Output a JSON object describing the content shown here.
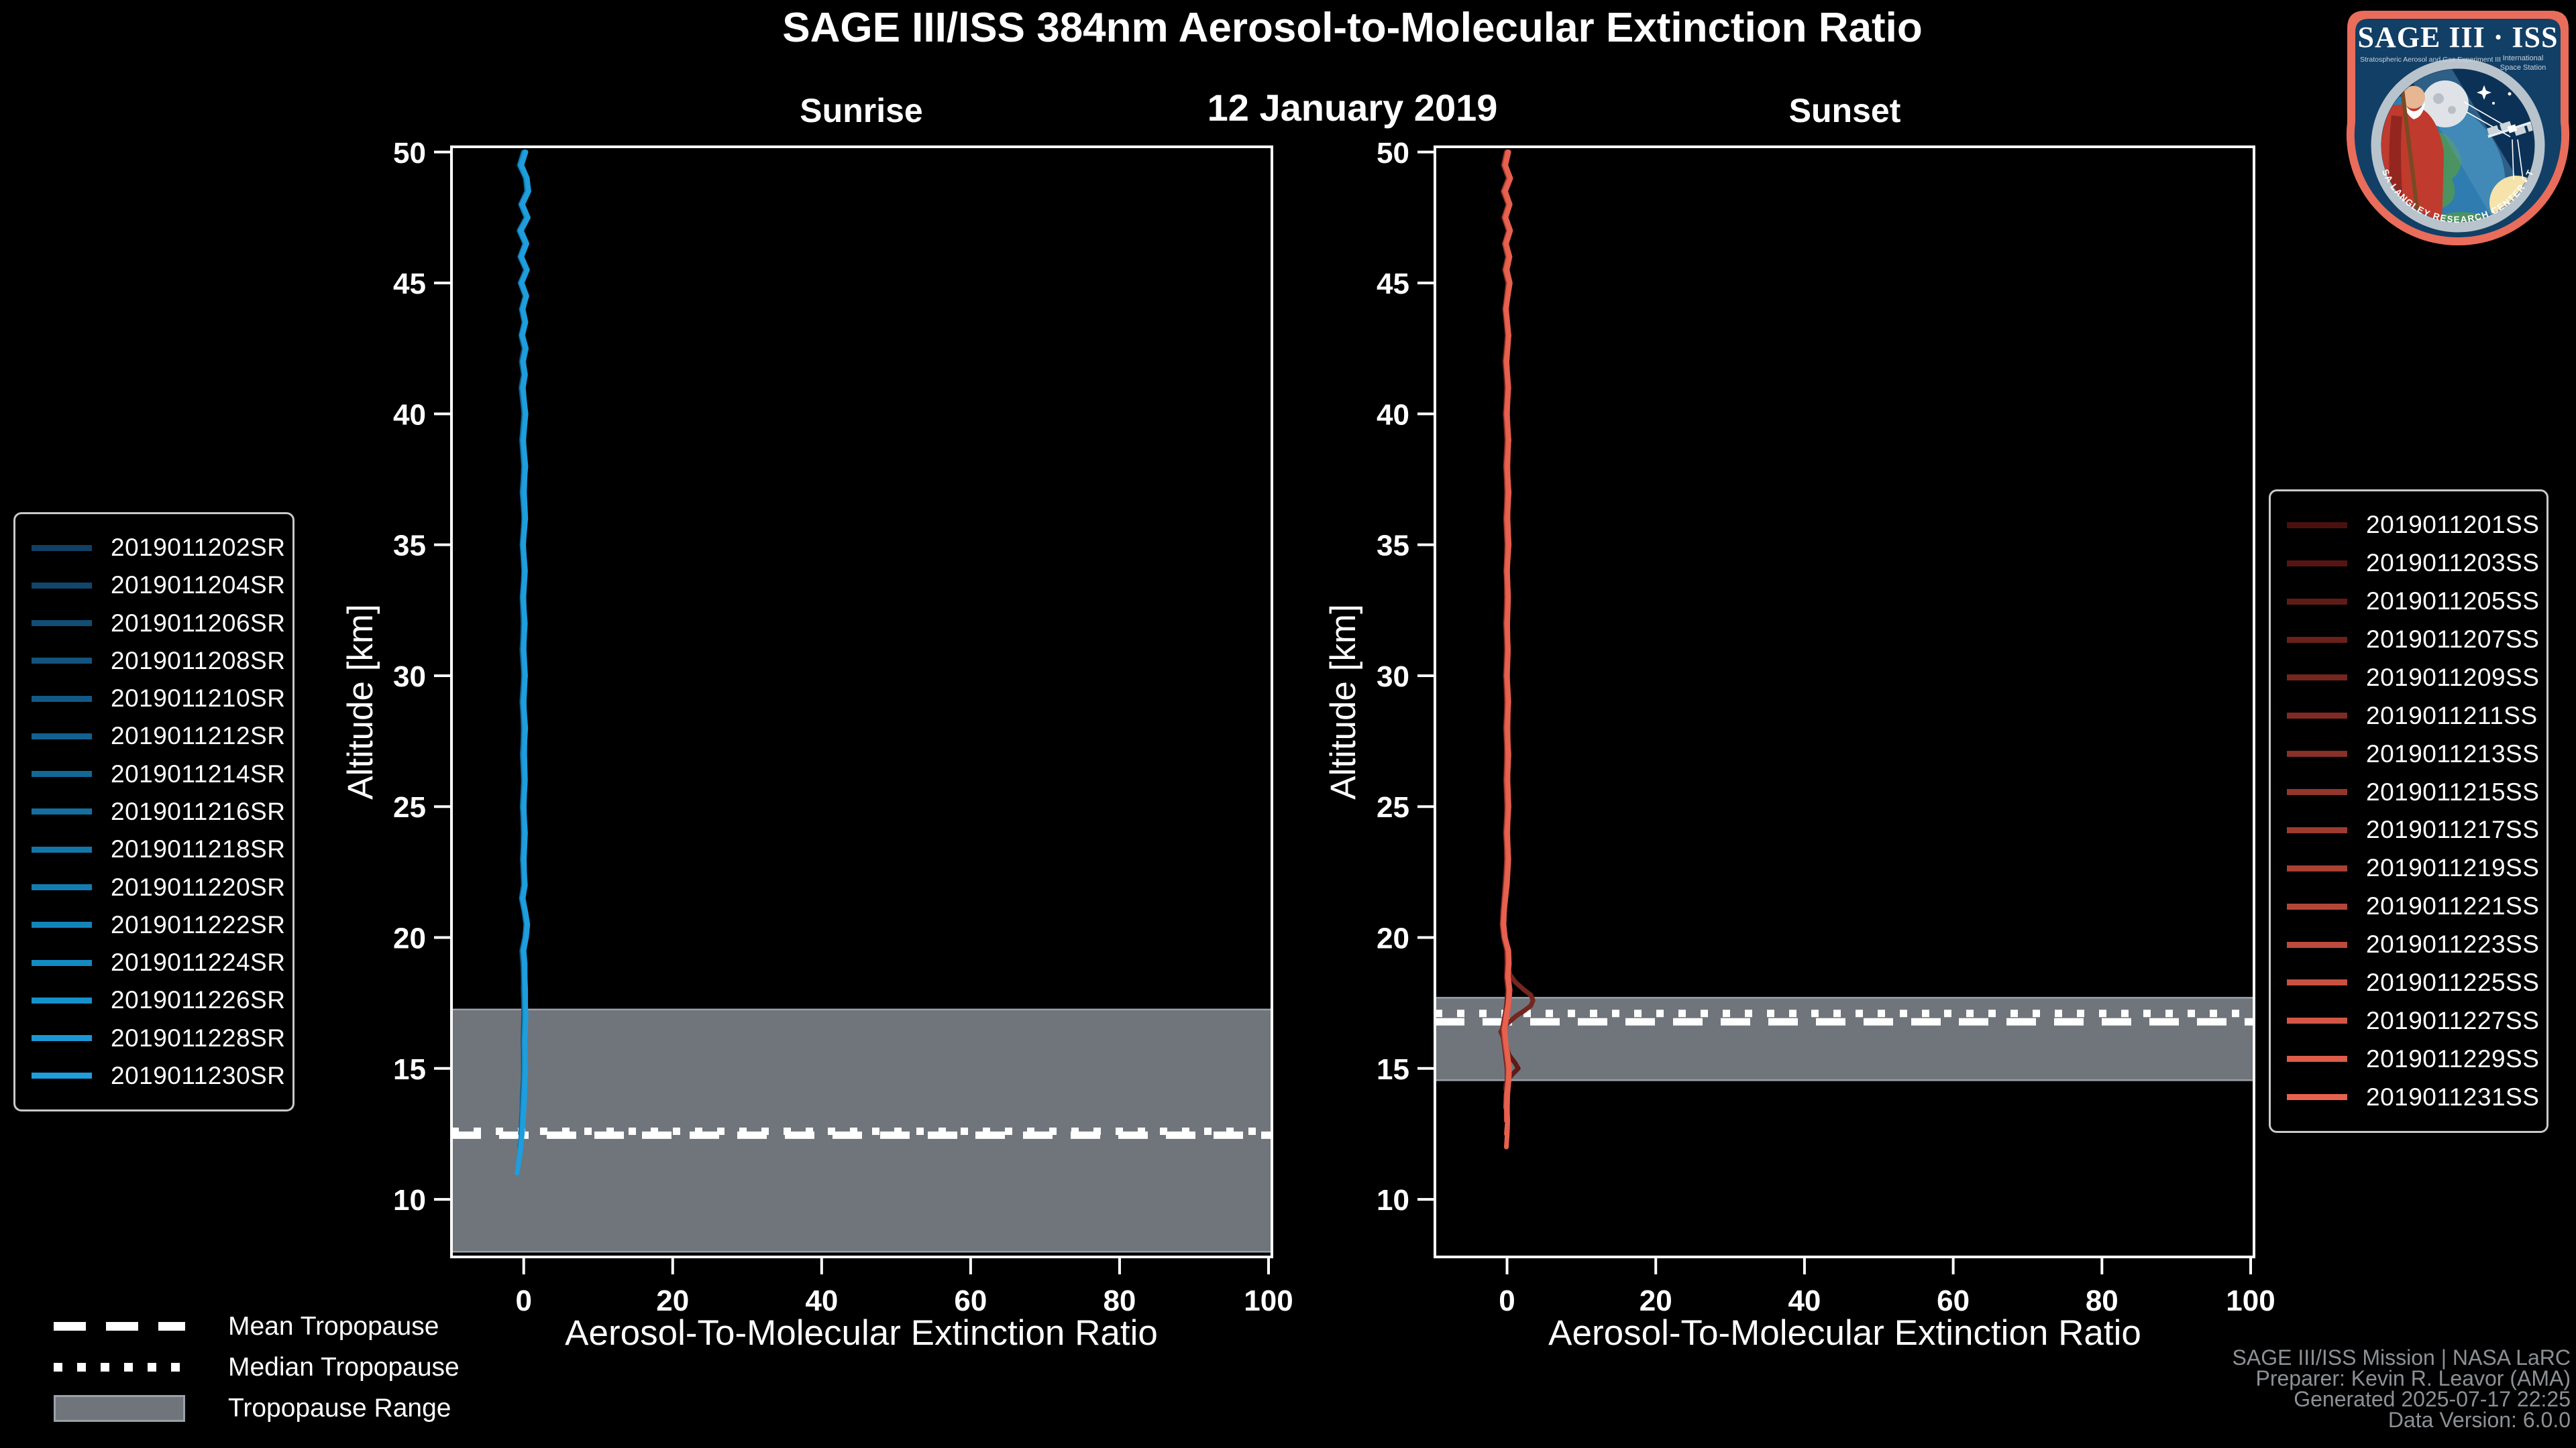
{
  "title": "SAGE III/ISS 384nm Aerosol-to-Molecular Extinction Ratio",
  "subtitle": "12 January 2019",
  "tropopause_legend": {
    "mean_label": "Mean Tropopause",
    "median_label": "Median Tropopause",
    "range_label": "Tropopause Range"
  },
  "credits": {
    "lines": [
      "SAGE III/ISS Mission | NASA LaRC",
      "Preparer: Kevin R. Leavor (AMA)",
      "Generated 2025-07-17 22:25",
      "Data Version: 6.0.0"
    ]
  },
  "logo": {
    "title": "SAGE III · ISS",
    "sub_left": "Stratospheric Aerosol and Gas Experiment III",
    "sub_right_1": "International",
    "sub_right_2": "Space Station",
    "ring_text": "BALL • NASA LANGLEY RESEARCH CENTER • TAS-I • ESA",
    "border_color": "#e96d5a",
    "field_color": "#123f66",
    "ring_color": "#b9c3cc"
  },
  "colors": {
    "background": "#000000",
    "axis": "#ffffff",
    "tropopause_band_fill": "#70757c",
    "tropopause_band_edge": "#9aa1a8",
    "tropopause_lines": "#ffffff",
    "credits_text": "#8d9196"
  },
  "chart_data": [
    {
      "type": "line",
      "title": "Sunrise",
      "xlabel": "Aerosol-To-Molecular Extinction Ratio",
      "ylabel": "Altitude [km]",
      "xlim": [
        -9.7,
        100.45
      ],
      "ylim": [
        7.8,
        50.2
      ],
      "xticks": [
        0,
        20,
        40,
        60,
        80,
        100
      ],
      "yticks": [
        10,
        15,
        20,
        25,
        30,
        35,
        40,
        45,
        50
      ],
      "grid": false,
      "legend_position": "outside-left",
      "tropopause": {
        "mean_km": 12.45,
        "median_km": 12.6,
        "range_km": [
          8.0,
          17.25
        ]
      },
      "series": [
        {
          "name": "2019011202SR",
          "color": "#123f63",
          "end_alt": 12.4
        },
        {
          "name": "2019011204SR",
          "color": "#12466c",
          "end_alt": 12.2
        },
        {
          "name": "2019011206SR",
          "color": "#124d74",
          "end_alt": 12.0
        },
        {
          "name": "2019011208SR",
          "color": "#12547d",
          "end_alt": 12.3
        },
        {
          "name": "2019011210SR",
          "color": "#125a86",
          "end_alt": 11.9
        },
        {
          "name": "2019011212SR",
          "color": "#12618f",
          "end_alt": 12.1
        },
        {
          "name": "2019011214SR",
          "color": "#126897",
          "end_alt": 11.8
        },
        {
          "name": "2019011216SR",
          "color": "#136fa0",
          "end_alt": 12.0
        },
        {
          "name": "2019011218SR",
          "color": "#1376a9",
          "end_alt": 11.6
        },
        {
          "name": "2019011220SR",
          "color": "#137db1",
          "end_alt": 11.9
        },
        {
          "name": "2019011222SR",
          "color": "#1384ba",
          "end_alt": 11.5
        },
        {
          "name": "2019011224SR",
          "color": "#138ac3",
          "end_alt": 11.7
        },
        {
          "name": "2019011226SR",
          "color": "#1391cc",
          "end_alt": 11.3
        },
        {
          "name": "2019011228SR",
          "color": "#1b98d4",
          "end_alt": 11.2
        },
        {
          "name": "2019011230SR",
          "color": "#1e9edd",
          "end_alt": 11.0
        }
      ],
      "base_profile": {
        "alt": [
          50,
          49.5,
          49,
          48.5,
          48,
          47.5,
          47,
          46.5,
          46,
          45.5,
          45,
          44.5,
          44,
          43.5,
          43,
          42.5,
          42,
          41.5,
          41,
          40,
          39,
          38,
          37,
          36,
          35,
          34,
          33,
          32,
          31,
          30,
          29,
          28,
          27,
          26,
          25,
          24,
          23,
          22,
          21.5,
          21,
          20.5,
          20,
          19.5,
          19,
          18,
          17,
          16,
          15,
          14,
          13,
          12.5,
          12,
          11.5,
          11
        ],
        "value": [
          0.1,
          -0.45,
          0.35,
          0.55,
          -0.3,
          0.45,
          -0.5,
          0.25,
          -0.4,
          0.4,
          -0.35,
          0.3,
          -0.2,
          0.15,
          -0.25,
          0.2,
          -0.15,
          0.1,
          -0.2,
          0.15,
          -0.15,
          0.1,
          -0.1,
          0.12,
          -0.12,
          0.1,
          -0.1,
          0.08,
          -0.08,
          0.1,
          -0.1,
          0.08,
          -0.06,
          0.08,
          -0.08,
          0.06,
          -0.06,
          0.1,
          -0.2,
          0.15,
          0.4,
          0.25,
          -0.1,
          0.05,
          0.1,
          0.15,
          0.05,
          0.1,
          -0.05,
          -0.2,
          -0.3,
          -0.45,
          -0.7,
          -1.0
        ]
      },
      "outliers": []
    },
    {
      "type": "line",
      "title": "Sunset",
      "xlabel": "Aerosol-To-Molecular Extinction Ratio",
      "ylabel": "Altitude [km]",
      "xlim": [
        -9.7,
        100.45
      ],
      "ylim": [
        7.8,
        50.2
      ],
      "xticks": [
        0,
        20,
        40,
        60,
        80,
        100
      ],
      "yticks": [
        10,
        15,
        20,
        25,
        30,
        35,
        40,
        45,
        50
      ],
      "grid": false,
      "legend_position": "outside-right",
      "tropopause": {
        "mean_km": 16.78,
        "median_km": 17.1,
        "range_km": [
          14.55,
          17.7
        ]
      },
      "series": [
        {
          "name": "2019011201SS",
          "color": "#4a100e",
          "end_alt": 14.6
        },
        {
          "name": "2019011203SS",
          "color": "#551512",
          "end_alt": 14.4
        },
        {
          "name": "2019011205SS",
          "color": "#5f1b17",
          "end_alt": 14.2
        },
        {
          "name": "2019011207SS",
          "color": "#6a201b",
          "end_alt": 14.5
        },
        {
          "name": "2019011209SS",
          "color": "#74261f",
          "end_alt": 14.7
        },
        {
          "name": "2019011211SS",
          "color": "#7f2b23",
          "end_alt": 14.0
        },
        {
          "name": "2019011213SS",
          "color": "#893028",
          "end_alt": 13.8
        },
        {
          "name": "2019011215SS",
          "color": "#94362c",
          "end_alt": 14.1
        },
        {
          "name": "2019011217SS",
          "color": "#9e3b30",
          "end_alt": 13.6
        },
        {
          "name": "2019011219SS",
          "color": "#a94134",
          "end_alt": 13.4
        },
        {
          "name": "2019011221SS",
          "color": "#b34639",
          "end_alt": 13.2
        },
        {
          "name": "2019011223SS",
          "color": "#be4b3d",
          "end_alt": 13.0
        },
        {
          "name": "2019011225SS",
          "color": "#c85141",
          "end_alt": 12.8
        },
        {
          "name": "2019011227SS",
          "color": "#d35645",
          "end_alt": 12.6
        },
        {
          "name": "2019011229SS",
          "color": "#dd5c4a",
          "end_alt": 12.4
        },
        {
          "name": "2019011231SS",
          "color": "#e8614e",
          "end_alt": 12.0
        }
      ],
      "base_profile": {
        "alt": [
          50,
          49.5,
          49,
          48.5,
          48,
          47.5,
          47,
          46.5,
          46,
          45.5,
          45,
          44,
          43,
          42,
          41,
          40,
          39,
          38,
          37,
          36,
          35,
          34,
          33,
          32,
          31,
          30,
          29,
          28,
          27,
          26,
          25,
          24,
          23,
          22,
          21.5,
          21,
          20.5,
          20,
          19.5,
          19,
          18.5,
          18,
          17.5,
          17,
          16.5,
          16,
          15.5,
          15,
          14.5,
          14,
          13.5,
          13,
          12.5,
          12
        ],
        "value": [
          0.05,
          -0.35,
          0.3,
          -0.4,
          0.25,
          -0.3,
          0.3,
          -0.25,
          0.2,
          -0.2,
          0.25,
          -0.2,
          0.15,
          -0.15,
          0.1,
          -0.1,
          0.1,
          -0.08,
          0.08,
          -0.08,
          0.08,
          -0.06,
          0.06,
          -0.06,
          0.06,
          -0.08,
          0.08,
          -0.06,
          0.06,
          -0.06,
          0.08,
          -0.08,
          0.06,
          -0.15,
          -0.3,
          -0.45,
          -0.55,
          -0.35,
          0.1,
          0.15,
          0.05,
          0.25,
          0.15,
          -0.15,
          -0.45,
          -0.3,
          -0.05,
          0.15,
          0.1,
          -0.1,
          -0.15,
          -0.1,
          -0.2,
          -0.3
        ]
      },
      "outliers": [
        {
          "series": 4,
          "points": [
            [
              19,
              0.1
            ],
            [
              18.6,
              0.35
            ],
            [
              18.3,
              1.1
            ],
            [
              18,
              2.3
            ],
            [
              17.8,
              3.2
            ],
            [
              17.6,
              3.5
            ],
            [
              17.4,
              3.2
            ],
            [
              17.2,
              2.3
            ],
            [
              17,
              1.2
            ],
            [
              16.8,
              0.4
            ],
            [
              16.6,
              -0.4
            ],
            [
              16.4,
              -0.85
            ],
            [
              16.2,
              -0.55
            ],
            [
              16,
              -0.2
            ],
            [
              15.8,
              0
            ],
            [
              15.6,
              0.1
            ],
            [
              15.4,
              0
            ],
            [
              15.2,
              0.05
            ],
            [
              15,
              0.1
            ],
            [
              14.8,
              0.05
            ],
            [
              14.7,
              0
            ]
          ]
        },
        {
          "series": 2,
          "points": [
            [
              15.8,
              -0.1
            ],
            [
              15.5,
              0.3
            ],
            [
              15.2,
              1.1
            ],
            [
              15,
              1.5
            ],
            [
              14.8,
              0.8
            ],
            [
              14.6,
              0.2
            ],
            [
              14.4,
              -0.15
            ],
            [
              14.2,
              -0.2
            ]
          ]
        }
      ]
    }
  ]
}
